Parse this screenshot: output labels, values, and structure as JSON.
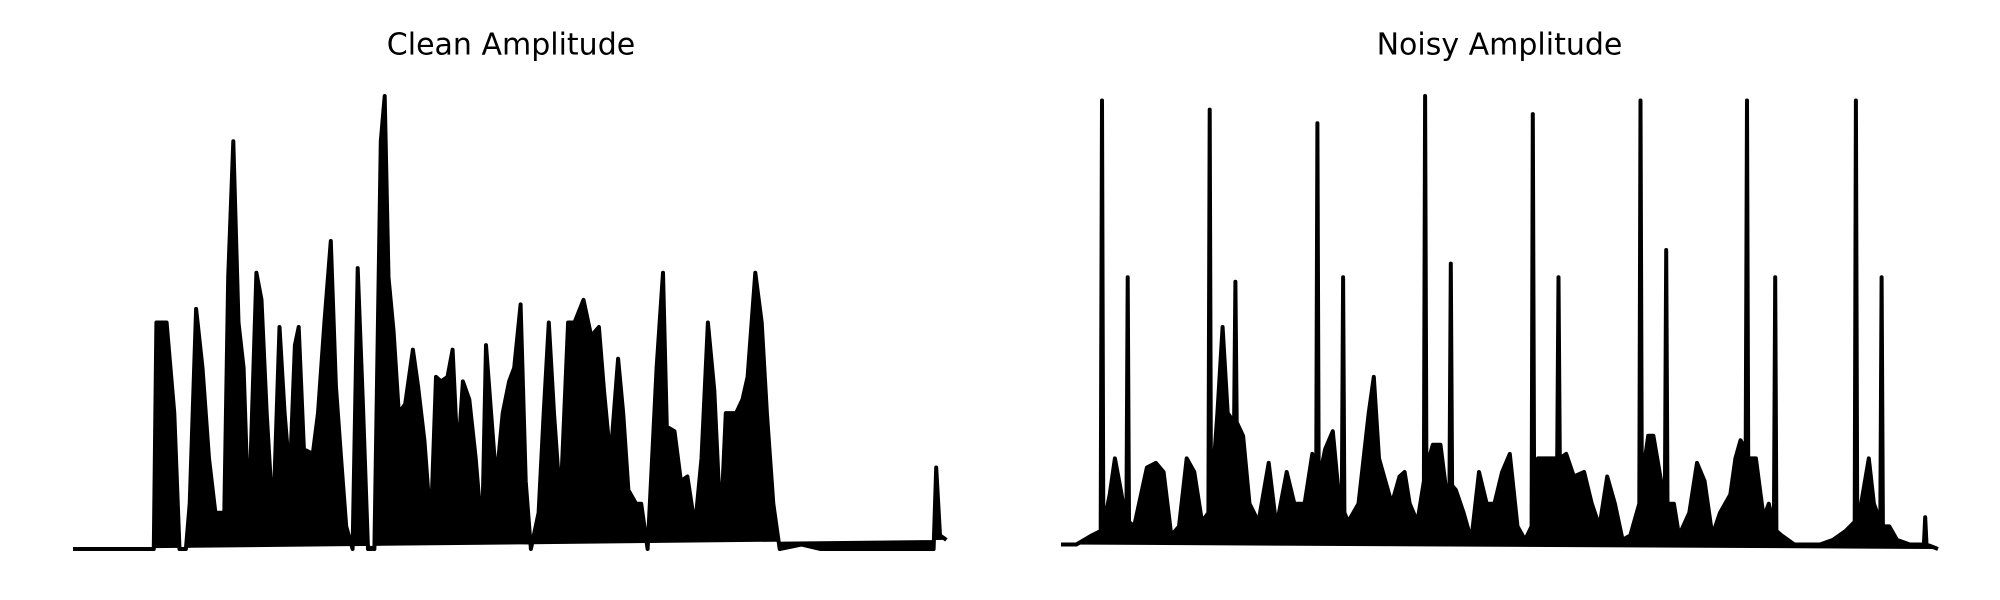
{
  "chart_data": [
    {
      "type": "line",
      "title": "Clean Amplitude",
      "color": "#000000",
      "xlim": [
        0,
        683
      ],
      "ylim": [
        0,
        1
      ],
      "x": [
        0,
        63,
        65,
        73,
        79,
        83,
        88,
        91,
        96,
        101,
        106,
        111,
        118,
        121,
        125,
        129,
        133,
        137,
        143,
        147,
        151,
        156,
        161,
        165,
        169,
        173,
        176,
        180,
        187,
        191,
        196,
        201,
        205,
        209,
        213,
        218,
        222,
        226,
        230,
        235,
        240,
        243,
        246,
        250,
        254,
        259,
        265,
        269,
        274,
        279,
        283,
        287,
        292,
        296,
        300,
        304,
        309,
        314,
        319,
        322,
        326,
        330,
        335,
        340,
        344,
        349,
        353,
        357,
        363,
        367,
        371,
        375,
        380,
        386,
        391,
        398,
        404,
        410,
        414,
        419,
        425,
        429,
        433,
        439,
        443,
        448,
        455,
        460,
        463,
        469,
        474,
        479,
        485,
        490,
        495,
        500,
        505,
        509,
        513,
        517,
        522,
        526,
        532,
        537,
        541,
        546,
        551,
        568,
        583,
        671,
        673,
        676,
        681
      ],
      "values": [
        0,
        0,
        0.5,
        0.5,
        0.3,
        0,
        0,
        0.1,
        0.53,
        0.4,
        0.2,
        0.08,
        0.08,
        0.6,
        0.9,
        0.5,
        0.4,
        0.06,
        0.61,
        0.55,
        0.3,
        0.06,
        0.49,
        0.3,
        0.16,
        0.45,
        0.49,
        0.22,
        0.21,
        0.3,
        0.5,
        0.68,
        0.36,
        0.2,
        0.05,
        0,
        0.62,
        0.32,
        0,
        0,
        0.9,
        1,
        0.6,
        0.48,
        0.3,
        0.32,
        0.44,
        0.36,
        0.24,
        0.05,
        0.38,
        0.37,
        0.38,
        0.44,
        0.2,
        0.37,
        0.33,
        0.2,
        0.03,
        0.45,
        0.3,
        0.15,
        0.3,
        0.37,
        0.4,
        0.54,
        0.15,
        0,
        0.08,
        0.3,
        0.5,
        0.3,
        0.1,
        0.5,
        0.5,
        0.55,
        0.47,
        0.49,
        0.35,
        0.2,
        0.42,
        0.3,
        0.13,
        0.1,
        0.1,
        0,
        0.4,
        0.61,
        0.27,
        0.26,
        0.15,
        0.16,
        0.05,
        0.2,
        0.5,
        0.35,
        0.05,
        0.3,
        0.3,
        0.3,
        0.33,
        0.38,
        0.61,
        0.5,
        0.3,
        0.1,
        0,
        0.01,
        0,
        0,
        0.18,
        0.03,
        0.02
      ]
    },
    {
      "type": "line",
      "title": "Noisy Amplitude",
      "color": "#000000",
      "xlim": [
        0,
        684
      ],
      "ylim": [
        0,
        1
      ],
      "x": [
        0,
        12,
        24,
        31,
        32,
        33,
        38,
        42,
        46,
        51,
        52,
        53,
        57,
        67,
        74,
        80,
        86,
        92,
        98,
        104,
        110,
        115,
        116,
        117,
        122,
        126,
        130,
        135,
        136,
        137,
        142,
        147,
        154,
        162,
        168,
        176,
        182,
        190,
        196,
        199,
        200,
        201,
        206,
        212,
        216,
        219,
        220,
        221,
        224,
        232,
        240,
        244,
        248,
        252,
        258,
        264,
        268,
        272,
        278,
        283,
        284,
        285,
        290,
        296,
        300,
        303,
        304,
        305,
        308,
        314,
        320,
        326,
        332,
        338,
        344,
        350,
        356,
        362,
        367,
        368,
        369,
        372,
        378,
        384,
        387,
        388,
        389,
        394,
        400,
        408,
        414,
        420,
        426,
        432,
        438,
        444,
        451,
        452,
        453,
        458,
        462,
        468,
        471,
        472,
        473,
        478,
        482,
        490,
        496,
        502,
        508,
        514,
        522,
        526,
        530,
        534,
        535,
        536,
        542,
        548,
        552,
        556,
        557,
        558,
        562,
        572,
        592,
        602,
        612,
        619,
        620,
        621,
        624,
        630,
        634,
        639,
        640,
        641,
        646,
        652,
        662,
        673,
        674,
        675,
        684
      ],
      "values": [
        0.01,
        0.01,
        0.03,
        0.04,
        0.99,
        0.05,
        0.12,
        0.2,
        0.14,
        0.06,
        0.6,
        0.06,
        0.05,
        0.18,
        0.19,
        0.17,
        0.03,
        0.05,
        0.2,
        0.17,
        0.06,
        0.08,
        0.97,
        0.1,
        0.3,
        0.49,
        0.3,
        0.28,
        0.59,
        0.28,
        0.25,
        0.1,
        0.06,
        0.19,
        0.05,
        0.17,
        0.1,
        0.1,
        0.21,
        0.15,
        0.94,
        0.15,
        0.22,
        0.26,
        0.14,
        0.1,
        0.6,
        0.08,
        0.06,
        0.1,
        0.3,
        0.38,
        0.2,
        0.16,
        0.1,
        0.16,
        0.17,
        0.1,
        0.06,
        0.15,
        1,
        0.18,
        0.23,
        0.23,
        0.14,
        0.14,
        0.63,
        0.14,
        0.13,
        0.08,
        0.02,
        0.17,
        0.1,
        0.1,
        0.17,
        0.21,
        0.05,
        0.02,
        0.05,
        0.96,
        0.15,
        0.2,
        0.2,
        0.2,
        0.2,
        0.6,
        0.2,
        0.21,
        0.16,
        0.17,
        0.1,
        0.05,
        0.16,
        0.1,
        0.02,
        0.03,
        0.1,
        0.99,
        0.15,
        0.25,
        0.25,
        0.15,
        0.12,
        0.66,
        0.1,
        0.1,
        0.03,
        0.08,
        0.19,
        0.15,
        0.03,
        0.08,
        0.12,
        0.2,
        0.24,
        0.22,
        0.99,
        0.2,
        0.2,
        0.07,
        0.1,
        0.05,
        0.6,
        0.04,
        0.03,
        0.01,
        0.01,
        0.02,
        0.04,
        0.06,
        0.99,
        0.08,
        0.1,
        0.2,
        0.1,
        0.06,
        0.6,
        0.05,
        0.05,
        0.02,
        0.01,
        0.01,
        0.07,
        0.01,
        0
      ]
    }
  ]
}
